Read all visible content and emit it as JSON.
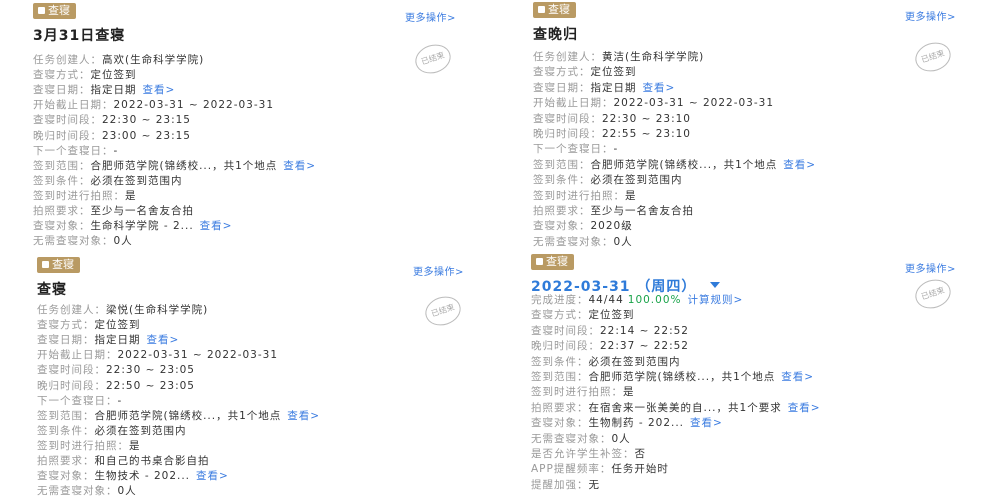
{
  "cards": [
    {
      "badge": "查寝",
      "more": "更多操作>",
      "title": "3月31日查寝",
      "stamp": "已结束",
      "rows": [
        {
          "label": "任务创建人：",
          "value": "高欢(生命科学学院)"
        },
        {
          "label": "查寝方式：",
          "value": "定位签到"
        },
        {
          "label": "查寝日期：",
          "value": "指定日期",
          "link": "查看>"
        },
        {
          "label": "开始截止日期：",
          "value": "2022-03-31 ~ 2022-03-31"
        },
        {
          "label": "查寝时间段：",
          "value": "22:30 ~ 23:15"
        },
        {
          "label": "晚归时间段：",
          "value": "23:00 ~ 23:15"
        },
        {
          "label": "下一个查寝日：",
          "value": "-"
        },
        {
          "label": "签到范围：",
          "value": "合肥师范学院(锦绣校...，共1个地点",
          "link": "查看>"
        },
        {
          "label": "签到条件：",
          "value": "必须在签到范围内"
        },
        {
          "label": "签到时进行拍照：",
          "value": "是"
        },
        {
          "label": "拍照要求：",
          "value": "至少与一名舍友合拍"
        },
        {
          "label": "查寝对象：",
          "value": "生命科学学院 - 2...",
          "link": "查看>"
        },
        {
          "label": "无需查寝对象：",
          "value": "0人"
        }
      ]
    },
    {
      "badge": "查寝",
      "more": "更多操作>",
      "title": "查晚归",
      "stamp": "已结束",
      "rows": [
        {
          "label": "任务创建人：",
          "value": "黄洁(生命科学学院)"
        },
        {
          "label": "查寝方式：",
          "value": "定位签到"
        },
        {
          "label": "查寝日期：",
          "value": "指定日期",
          "link": "查看>"
        },
        {
          "label": "开始截止日期：",
          "value": "2022-03-31 ~ 2022-03-31"
        },
        {
          "label": "查寝时间段：",
          "value": "22:30 ~ 23:10"
        },
        {
          "label": "晚归时间段：",
          "value": "22:55 ~ 23:10"
        },
        {
          "label": "下一个查寝日：",
          "value": "-"
        },
        {
          "label": "签到范围：",
          "value": "合肥师范学院(锦绣校...，共1个地点",
          "link": "查看>"
        },
        {
          "label": "签到条件：",
          "value": "必须在签到范围内"
        },
        {
          "label": "签到时进行拍照：",
          "value": "是"
        },
        {
          "label": "拍照要求：",
          "value": "至少与一名舍友合拍"
        },
        {
          "label": "查寝对象：",
          "value": "2020级"
        },
        {
          "label": "无需查寝对象：",
          "value": "0人"
        }
      ]
    },
    {
      "badge": "查寝",
      "more": "更多操作>",
      "title": "查寝",
      "stamp": "已结束",
      "rows": [
        {
          "label": "任务创建人：",
          "value": "梁悦(生命科学学院)"
        },
        {
          "label": "查寝方式：",
          "value": "定位签到"
        },
        {
          "label": "查寝日期：",
          "value": "指定日期",
          "link": "查看>"
        },
        {
          "label": "开始截止日期：",
          "value": "2022-03-31 ~ 2022-03-31"
        },
        {
          "label": "查寝时间段：",
          "value": "22:30 ~ 23:05"
        },
        {
          "label": "晚归时间段：",
          "value": "22:50 ~ 23:05"
        },
        {
          "label": "下一个查寝日：",
          "value": "-"
        },
        {
          "label": "签到范围：",
          "value": "合肥师范学院(锦绣校...，共1个地点",
          "link": "查看>"
        },
        {
          "label": "签到条件：",
          "value": "必须在签到范围内"
        },
        {
          "label": "签到时进行拍照：",
          "value": "是"
        },
        {
          "label": "拍照要求：",
          "value": "和自己的书桌合影自拍"
        },
        {
          "label": "查寝对象：",
          "value": "生物技术 - 202...",
          "link": "查看>"
        },
        {
          "label": "无需查寝对象：",
          "value": "0人"
        }
      ]
    },
    {
      "badge": "查寝",
      "more": "更多操作>",
      "title": "2022-03-31 （周四）",
      "stamp": "已结束",
      "rows": [
        {
          "label": "完成进度：",
          "value": "44/44",
          "percent": "100.00%",
          "link": "计算规则>"
        },
        {
          "label": "查寝方式：",
          "value": "定位签到"
        },
        {
          "label": "查寝时间段：",
          "value": "22:14 ~ 22:52"
        },
        {
          "label": "晚归时间段：",
          "value": "22:37 ~ 22:52"
        },
        {
          "label": "签到条件：",
          "value": "必须在签到范围内"
        },
        {
          "label": "签到范围：",
          "value": "合肥师范学院(锦绣校...，共1个地点",
          "link": "查看>"
        },
        {
          "label": "签到时进行拍照：",
          "value": "是"
        },
        {
          "label": "拍照要求：",
          "value": "在宿舍来一张美美的自...，共1个要求",
          "link": "查看>"
        },
        {
          "label": "查寝对象：",
          "value": "生物制药 - 202...",
          "link": "查看>"
        },
        {
          "label": "无需查寝对象：",
          "value": "0人"
        },
        {
          "label": "是否允许学生补签：",
          "value": "否"
        },
        {
          "label": "APP提醒频率：",
          "value": "任务开始时"
        },
        {
          "label": "提醒加强：",
          "value": "无"
        }
      ]
    }
  ]
}
